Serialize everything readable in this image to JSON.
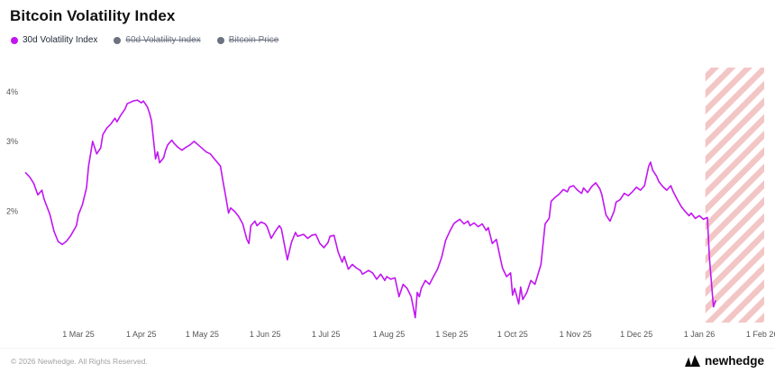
{
  "page": {
    "title": "Bitcoin Volatility Index",
    "footer": "© 2026 Newhedge. All Rights Reserved.",
    "brand": "newhedge"
  },
  "legend": [
    {
      "label": "30d Volatility Index",
      "color": "#c215f2",
      "active": true
    },
    {
      "label": "60d Volatility Index",
      "color": "#6b7280",
      "active": false
    },
    {
      "label": "Bitcoin Price",
      "color": "#6b7280",
      "active": false
    }
  ],
  "chart_data": {
    "type": "line",
    "title": "Bitcoin Volatility Index",
    "series_name": "30d Volatility Index",
    "line_color": "#c215f2",
    "hatch_color": "#f3c6c6",
    "grid": false,
    "legend_position": "top-left",
    "y_scale": "log",
    "ylim": [
      1.05,
      4.6
    ],
    "y_ticks": [
      {
        "value": 2,
        "label": "2%"
      },
      {
        "value": 3,
        "label": "3%"
      },
      {
        "value": 4,
        "label": "4%"
      }
    ],
    "x_start": "2025-02-01",
    "x_end": "2026-02-02",
    "future_region_start": "2026-01-04",
    "x_ticks": [
      {
        "date": "2025-03-01",
        "label": "1 Mar 25"
      },
      {
        "date": "2025-04-01",
        "label": "1 Apr 25"
      },
      {
        "date": "2025-05-01",
        "label": "1 May 25"
      },
      {
        "date": "2025-06-01",
        "label": "1 Jun 25"
      },
      {
        "date": "2025-07-01",
        "label": "1 Jul 25"
      },
      {
        "date": "2025-08-01",
        "label": "1 Aug 25"
      },
      {
        "date": "2025-09-01",
        "label": "1 Sep 25"
      },
      {
        "date": "2025-10-01",
        "label": "1 Oct 25"
      },
      {
        "date": "2025-11-01",
        "label": "1 Nov 25"
      },
      {
        "date": "2025-12-01",
        "label": "1 Dec 25"
      },
      {
        "date": "2026-01-01",
        "label": "1 Jan 26"
      },
      {
        "date": "2026-02-01",
        "label": "1 Feb 26"
      }
    ],
    "points": [
      [
        "2025-02-03",
        2.5
      ],
      [
        "2025-02-05",
        2.44
      ],
      [
        "2025-02-07",
        2.35
      ],
      [
        "2025-02-09",
        2.2
      ],
      [
        "2025-02-11",
        2.26
      ],
      [
        "2025-02-12",
        2.15
      ],
      [
        "2025-02-15",
        1.96
      ],
      [
        "2025-02-17",
        1.78
      ],
      [
        "2025-02-19",
        1.68
      ],
      [
        "2025-02-21",
        1.65
      ],
      [
        "2025-02-23",
        1.68
      ],
      [
        "2025-02-25",
        1.73
      ],
      [
        "2025-02-28",
        1.84
      ],
      [
        "2025-03-01",
        1.96
      ],
      [
        "2025-03-03",
        2.08
      ],
      [
        "2025-03-05",
        2.29
      ],
      [
        "2025-03-06",
        2.6
      ],
      [
        "2025-03-08",
        3.0
      ],
      [
        "2025-03-10",
        2.79
      ],
      [
        "2025-03-12",
        2.89
      ],
      [
        "2025-03-13",
        3.12
      ],
      [
        "2025-03-15",
        3.24
      ],
      [
        "2025-03-17",
        3.32
      ],
      [
        "2025-03-19",
        3.43
      ],
      [
        "2025-03-20",
        3.36
      ],
      [
        "2025-03-22",
        3.5
      ],
      [
        "2025-03-24",
        3.62
      ],
      [
        "2025-03-25",
        3.73
      ],
      [
        "2025-03-28",
        3.79
      ],
      [
        "2025-03-30",
        3.81
      ],
      [
        "2025-04-01",
        3.75
      ],
      [
        "2025-04-02",
        3.79
      ],
      [
        "2025-04-04",
        3.66
      ],
      [
        "2025-04-05",
        3.54
      ],
      [
        "2025-04-06",
        3.38
      ],
      [
        "2025-04-08",
        2.71
      ],
      [
        "2025-04-09",
        2.82
      ],
      [
        "2025-04-10",
        2.65
      ],
      [
        "2025-04-12",
        2.73
      ],
      [
        "2025-04-13",
        2.85
      ],
      [
        "2025-04-14",
        2.94
      ],
      [
        "2025-04-16",
        3.02
      ],
      [
        "2025-04-17",
        2.97
      ],
      [
        "2025-04-19",
        2.9
      ],
      [
        "2025-04-21",
        2.85
      ],
      [
        "2025-04-23",
        2.9
      ],
      [
        "2025-04-25",
        2.94
      ],
      [
        "2025-04-27",
        3.0
      ],
      [
        "2025-04-29",
        2.94
      ],
      [
        "2025-05-01",
        2.88
      ],
      [
        "2025-05-03",
        2.82
      ],
      [
        "2025-05-05",
        2.79
      ],
      [
        "2025-05-07",
        2.71
      ],
      [
        "2025-05-10",
        2.6
      ],
      [
        "2025-05-11",
        2.42
      ],
      [
        "2025-05-13",
        2.12
      ],
      [
        "2025-05-14",
        1.98
      ],
      [
        "2025-05-15",
        2.04
      ],
      [
        "2025-05-17",
        2.0
      ],
      [
        "2025-05-19",
        1.94
      ],
      [
        "2025-05-21",
        1.86
      ],
      [
        "2025-05-23",
        1.7
      ],
      [
        "2025-05-24",
        1.66
      ],
      [
        "2025-05-25",
        1.84
      ],
      [
        "2025-05-27",
        1.89
      ],
      [
        "2025-05-28",
        1.84
      ],
      [
        "2025-05-30",
        1.88
      ],
      [
        "2025-06-01",
        1.86
      ],
      [
        "2025-06-02",
        1.83
      ],
      [
        "2025-06-04",
        1.71
      ],
      [
        "2025-06-06",
        1.78
      ],
      [
        "2025-06-08",
        1.84
      ],
      [
        "2025-06-09",
        1.81
      ],
      [
        "2025-06-11",
        1.6
      ],
      [
        "2025-06-12",
        1.51
      ],
      [
        "2025-06-14",
        1.67
      ],
      [
        "2025-06-16",
        1.77
      ],
      [
        "2025-06-17",
        1.73
      ],
      [
        "2025-06-20",
        1.75
      ],
      [
        "2025-06-22",
        1.71
      ],
      [
        "2025-06-24",
        1.74
      ],
      [
        "2025-06-26",
        1.75
      ],
      [
        "2025-06-28",
        1.66
      ],
      [
        "2025-06-30",
        1.62
      ],
      [
        "2025-07-02",
        1.67
      ],
      [
        "2025-07-03",
        1.73
      ],
      [
        "2025-07-05",
        1.74
      ],
      [
        "2025-07-07",
        1.58
      ],
      [
        "2025-07-09",
        1.49
      ],
      [
        "2025-07-10",
        1.54
      ],
      [
        "2025-07-12",
        1.43
      ],
      [
        "2025-07-14",
        1.47
      ],
      [
        "2025-07-16",
        1.44
      ],
      [
        "2025-07-18",
        1.42
      ],
      [
        "2025-07-19",
        1.39
      ],
      [
        "2025-07-22",
        1.42
      ],
      [
        "2025-07-24",
        1.4
      ],
      [
        "2025-07-26",
        1.35
      ],
      [
        "2025-07-28",
        1.39
      ],
      [
        "2025-07-30",
        1.34
      ],
      [
        "2025-07-31",
        1.37
      ],
      [
        "2025-08-02",
        1.35
      ],
      [
        "2025-08-04",
        1.36
      ],
      [
        "2025-08-06",
        1.22
      ],
      [
        "2025-08-08",
        1.31
      ],
      [
        "2025-08-10",
        1.28
      ],
      [
        "2025-08-12",
        1.22
      ],
      [
        "2025-08-14",
        1.08
      ],
      [
        "2025-08-15",
        1.25
      ],
      [
        "2025-08-16",
        1.22
      ],
      [
        "2025-08-17",
        1.28
      ],
      [
        "2025-08-19",
        1.34
      ],
      [
        "2025-08-21",
        1.31
      ],
      [
        "2025-08-23",
        1.37
      ],
      [
        "2025-08-25",
        1.43
      ],
      [
        "2025-08-27",
        1.53
      ],
      [
        "2025-08-29",
        1.69
      ],
      [
        "2025-08-31",
        1.78
      ],
      [
        "2025-09-02",
        1.86
      ],
      [
        "2025-09-03",
        1.88
      ],
      [
        "2025-09-05",
        1.91
      ],
      [
        "2025-09-07",
        1.86
      ],
      [
        "2025-09-09",
        1.89
      ],
      [
        "2025-09-10",
        1.84
      ],
      [
        "2025-09-12",
        1.87
      ],
      [
        "2025-09-14",
        1.83
      ],
      [
        "2025-09-16",
        1.86
      ],
      [
        "2025-09-18",
        1.79
      ],
      [
        "2025-09-19",
        1.82
      ],
      [
        "2025-09-21",
        1.66
      ],
      [
        "2025-09-23",
        1.7
      ],
      [
        "2025-09-25",
        1.52
      ],
      [
        "2025-09-26",
        1.44
      ],
      [
        "2025-09-28",
        1.37
      ],
      [
        "2025-09-30",
        1.4
      ],
      [
        "2025-10-01",
        1.23
      ],
      [
        "2025-10-02",
        1.28
      ],
      [
        "2025-10-04",
        1.17
      ],
      [
        "2025-10-05",
        1.29
      ],
      [
        "2025-10-06",
        1.2
      ],
      [
        "2025-10-08",
        1.25
      ],
      [
        "2025-10-10",
        1.34
      ],
      [
        "2025-10-12",
        1.31
      ],
      [
        "2025-10-13",
        1.36
      ],
      [
        "2025-10-15",
        1.47
      ],
      [
        "2025-10-17",
        1.86
      ],
      [
        "2025-10-19",
        1.92
      ],
      [
        "2025-10-20",
        2.12
      ],
      [
        "2025-10-22",
        2.17
      ],
      [
        "2025-10-24",
        2.21
      ],
      [
        "2025-10-26",
        2.27
      ],
      [
        "2025-10-28",
        2.24
      ],
      [
        "2025-10-29",
        2.3
      ],
      [
        "2025-10-31",
        2.32
      ],
      [
        "2025-11-02",
        2.26
      ],
      [
        "2025-11-04",
        2.22
      ],
      [
        "2025-11-05",
        2.29
      ],
      [
        "2025-11-07",
        2.23
      ],
      [
        "2025-11-09",
        2.31
      ],
      [
        "2025-11-11",
        2.36
      ],
      [
        "2025-11-13",
        2.28
      ],
      [
        "2025-11-14",
        2.2
      ],
      [
        "2025-11-16",
        1.96
      ],
      [
        "2025-11-18",
        1.89
      ],
      [
        "2025-11-20",
        2.0
      ],
      [
        "2025-11-21",
        2.11
      ],
      [
        "2025-11-23",
        2.14
      ],
      [
        "2025-11-25",
        2.22
      ],
      [
        "2025-11-27",
        2.19
      ],
      [
        "2025-11-29",
        2.24
      ],
      [
        "2025-12-01",
        2.3
      ],
      [
        "2025-12-03",
        2.26
      ],
      [
        "2025-12-05",
        2.32
      ],
      [
        "2025-12-07",
        2.59
      ],
      [
        "2025-12-08",
        2.66
      ],
      [
        "2025-12-09",
        2.54
      ],
      [
        "2025-12-11",
        2.45
      ],
      [
        "2025-12-12",
        2.38
      ],
      [
        "2025-12-14",
        2.31
      ],
      [
        "2025-12-16",
        2.26
      ],
      [
        "2025-12-18",
        2.32
      ],
      [
        "2025-12-19",
        2.25
      ],
      [
        "2025-12-21",
        2.15
      ],
      [
        "2025-12-23",
        2.06
      ],
      [
        "2025-12-25",
        2.0
      ],
      [
        "2025-12-27",
        1.95
      ],
      [
        "2025-12-28",
        1.98
      ],
      [
        "2025-12-30",
        1.92
      ],
      [
        "2026-01-01",
        1.95
      ],
      [
        "2026-01-03",
        1.91
      ],
      [
        "2026-01-05",
        1.93
      ],
      [
        "2026-01-06",
        1.53
      ],
      [
        "2026-01-07",
        1.32
      ],
      [
        "2026-01-08",
        1.15
      ],
      [
        "2026-01-09",
        1.19
      ]
    ]
  }
}
